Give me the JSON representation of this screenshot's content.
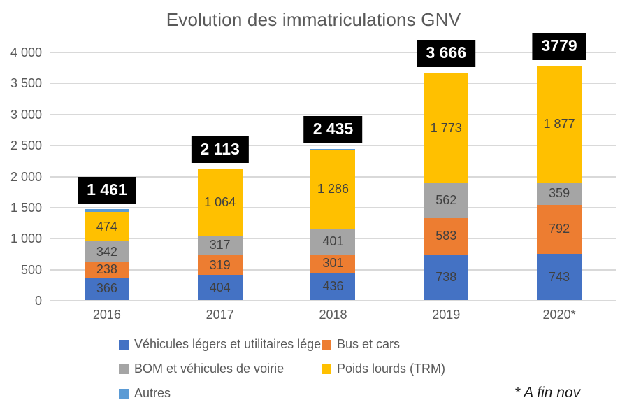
{
  "chart_data": {
    "type": "bar",
    "stacked": true,
    "title": "Evolution des immatriculations GNV",
    "xlabel": "",
    "ylabel": "",
    "ylim": [
      0,
      4000
    ],
    "ytick_step": 500,
    "yticks": [
      "0",
      "500",
      "1 000",
      "1 500",
      "2 000",
      "2 500",
      "3 000",
      "3 500",
      "4 000"
    ],
    "grid": true,
    "legend_position": "bottom",
    "categories": [
      "2016",
      "2017",
      "2018",
      "2019",
      "2020*"
    ],
    "totals": [
      1461,
      2113,
      2435,
      3666,
      3779
    ],
    "totals_labels": [
      "1 461",
      "2 113",
      "2 435",
      "3 666",
      "3779"
    ],
    "series": [
      {
        "name": "Véhicules légers et utilitaires légers",
        "color": "#4472C4",
        "values": [
          366,
          404,
          436,
          738,
          743
        ],
        "labels": [
          "366",
          "404",
          "436",
          "738",
          "743"
        ]
      },
      {
        "name": "Bus et cars",
        "color": "#ED7D31",
        "values": [
          238,
          319,
          301,
          583,
          792
        ],
        "labels": [
          "238",
          "319",
          "301",
          "583",
          "792"
        ]
      },
      {
        "name": "BOM et véhicules de voirie",
        "color": "#A5A5A5",
        "values": [
          342,
          317,
          401,
          562,
          359
        ],
        "labels": [
          "342",
          "317",
          "401",
          "562",
          "359"
        ]
      },
      {
        "name": "Poids lourds (TRM)",
        "color": "#FFC000",
        "values": [
          474,
          1064,
          1286,
          1773,
          1877
        ],
        "labels": [
          "474",
          "1 064",
          "1 286",
          "1 773",
          "1 877"
        ]
      },
      {
        "name": "Autres",
        "color": "#5B9BD5",
        "values": [
          41,
          9,
          11,
          10,
          8
        ],
        "labels": [
          "",
          "",
          "",
          "",
          ""
        ]
      }
    ],
    "footnote": "* A fin nov",
    "colors": {
      "title_text": "#595959",
      "axis_text": "#595959",
      "segment_label_text": "#404040",
      "gridline": "#D9D9D9",
      "total_box_bg": "#000000",
      "total_box_text": "#FFFFFF",
      "background": "#FFFFFF"
    }
  }
}
